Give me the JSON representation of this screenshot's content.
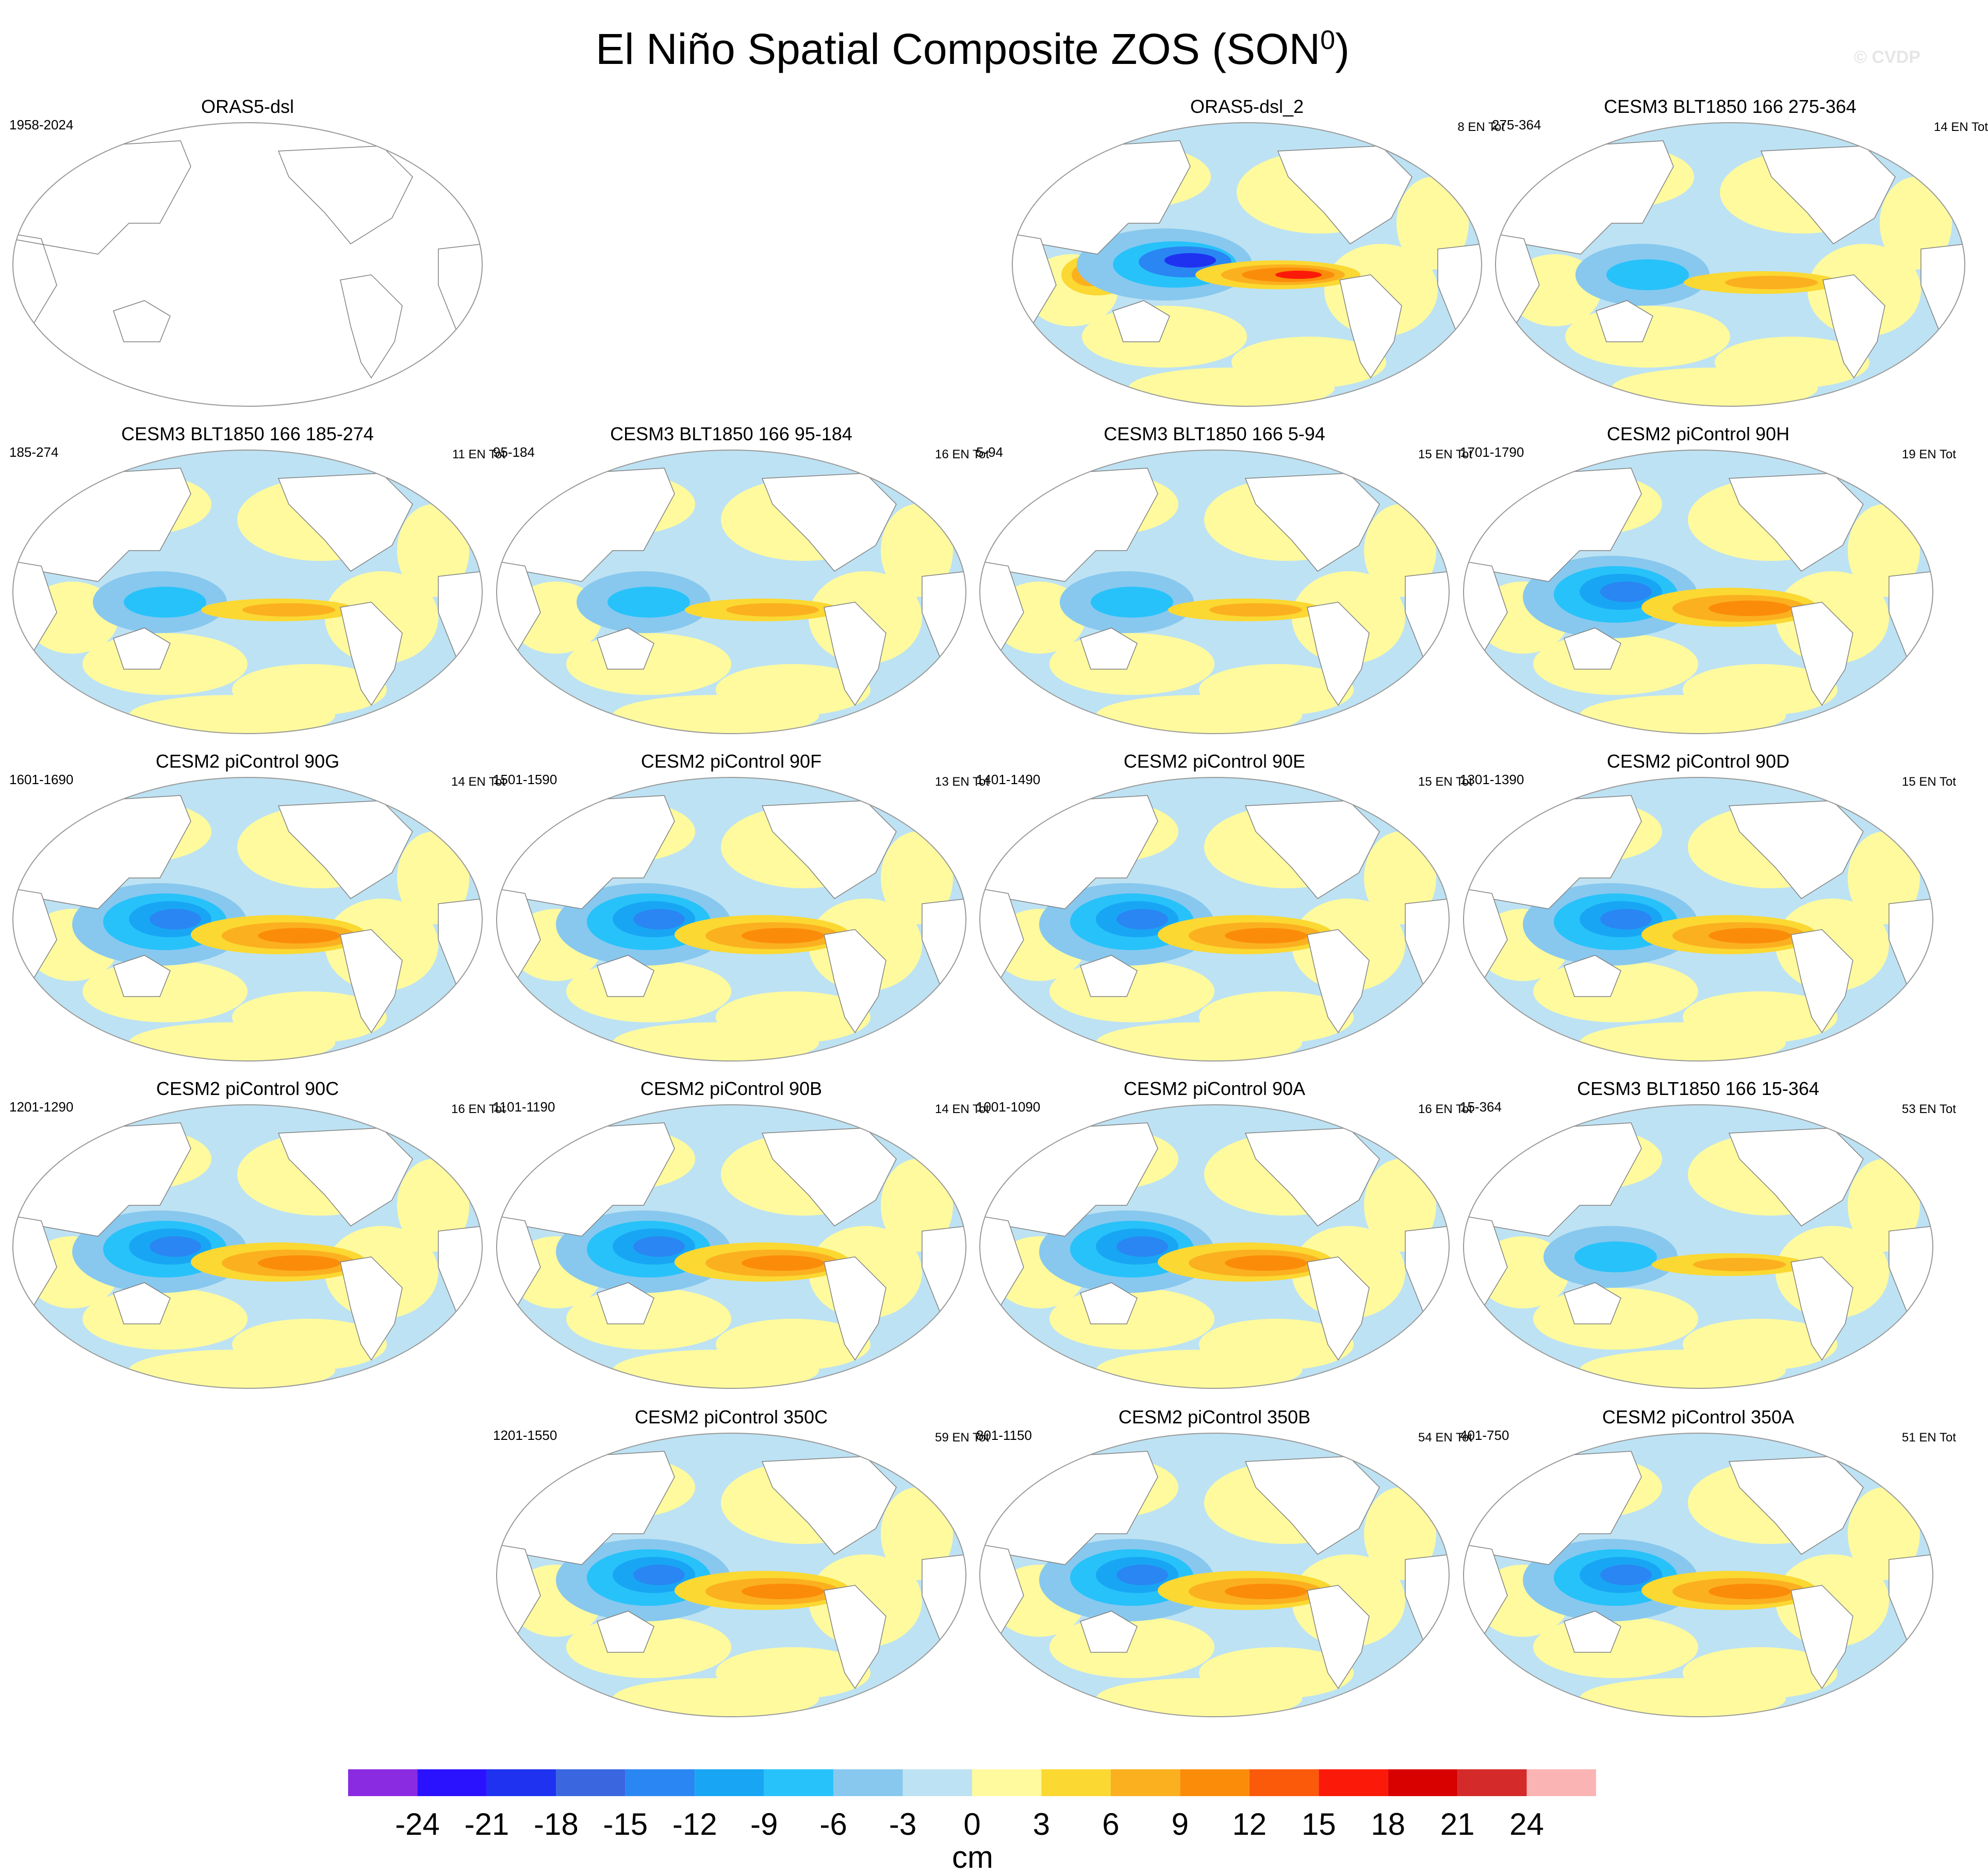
{
  "title": "El Niño Spatial Composite ZOS (SON",
  "title_sup": "0",
  "title_close": ")",
  "watermark": "© CVDP",
  "panels": [
    {
      "title": "ORAS5-dsl",
      "years": "1958-2024",
      "count": "",
      "style": "blank"
    },
    {
      "title": "ORAS5-dsl_2",
      "years": "",
      "count": "8 EN Tot",
      "style": "obs"
    },
    {
      "title": "CESM3 BLT1850 166 275-364",
      "years": "275-364",
      "count": "14 EN Tot",
      "style": "weak"
    },
    {
      "title": "CESM3 BLT1850 166 185-274",
      "years": "185-274",
      "count": "11 EN Tot",
      "style": "weak"
    },
    {
      "title": "CESM3 BLT1850 166 95-184",
      "years": "95-184",
      "count": "16 EN Tot",
      "style": "weak"
    },
    {
      "title": "CESM3 BLT1850 166 5-94",
      "years": "5-94",
      "count": "15 EN Tot",
      "style": "weak"
    },
    {
      "title": "CESM2 piControl 90H",
      "years": "1701-1790",
      "count": "19 EN Tot",
      "style": "strong"
    },
    {
      "title": "CESM2 piControl 90G",
      "years": "1601-1690",
      "count": "14 EN Tot",
      "style": "strong"
    },
    {
      "title": "CESM2 piControl 90F",
      "years": "1501-1590",
      "count": "13 EN Tot",
      "style": "strong"
    },
    {
      "title": "CESM2 piControl 90E",
      "years": "1401-1490",
      "count": "15 EN Tot",
      "style": "strong"
    },
    {
      "title": "CESM2 piControl 90D",
      "years": "1301-1390",
      "count": "15 EN Tot",
      "style": "strong"
    },
    {
      "title": "CESM2 piControl 90C",
      "years": "1201-1290",
      "count": "16 EN Tot",
      "style": "strong"
    },
    {
      "title": "CESM2 piControl 90B",
      "years": "1101-1190",
      "count": "14 EN Tot",
      "style": "strong"
    },
    {
      "title": "CESM2 piControl 90A",
      "years": "1001-1090",
      "count": "16 EN Tot",
      "style": "strong"
    },
    {
      "title": "CESM3 BLT1850 166 15-364",
      "years": "15-364",
      "count": "53 EN Tot",
      "style": "weak"
    },
    {
      "title": "CESM2 piControl 350C",
      "years": "1201-1550",
      "count": "59 EN Tot",
      "style": "strong"
    },
    {
      "title": "CESM2 piControl 350B",
      "years": "801-1150",
      "count": "54 EN Tot",
      "style": "strong"
    },
    {
      "title": "CESM2 piControl 350A",
      "years": "401-750",
      "count": "51 EN Tot",
      "style": "strong"
    }
  ],
  "colorbar": {
    "colors": [
      "#8a2be2",
      "#2a12ff",
      "#1e32f0",
      "#3a66e0",
      "#2a86f2",
      "#18a6f4",
      "#28c2fa",
      "#88c8ee",
      "#bde2f3",
      "#fffa9e",
      "#fbd832",
      "#fbb020",
      "#fb8c0a",
      "#fb5a0a",
      "#fb1a0a",
      "#d90000",
      "#d42a2a",
      "#fbb4b4"
    ],
    "labels": [
      "-24",
      "-21",
      "-18",
      "-15",
      "-12",
      "-9",
      "-6",
      "-3",
      "0",
      "3",
      "6",
      "9",
      "12",
      "15",
      "18",
      "21",
      "24"
    ],
    "units": "cm"
  }
}
